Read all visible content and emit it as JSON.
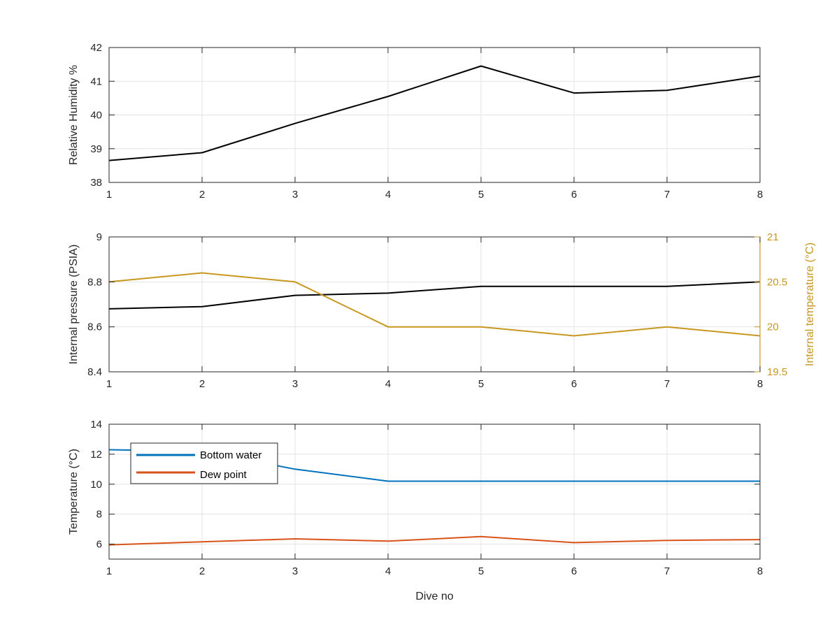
{
  "chart_data": [
    {
      "type": "line",
      "x": [
        1,
        2,
        3,
        4,
        5,
        6,
        7,
        8
      ],
      "xlim": [
        1,
        8
      ],
      "ylim": [
        38,
        42
      ],
      "xticks": [
        "1",
        "2",
        "3",
        "4",
        "5",
        "6",
        "7",
        "8"
      ],
      "yticks": [
        "38",
        "39",
        "40",
        "41",
        "42"
      ],
      "xlabel": "",
      "ylabel": "Relative Humidity %",
      "grid": true,
      "series": [
        {
          "values": [
            38.65,
            38.88,
            39.75,
            40.55,
            41.45,
            40.65,
            40.73,
            41.15
          ],
          "color": "#000000"
        }
      ]
    },
    {
      "type": "line",
      "x": [
        1,
        2,
        3,
        4,
        5,
        6,
        7,
        8
      ],
      "xlim": [
        1,
        8
      ],
      "ylim": [
        8.4,
        9
      ],
      "ylim_right": [
        19.5,
        21
      ],
      "xticks": [
        "1",
        "2",
        "3",
        "4",
        "5",
        "6",
        "7",
        "8"
      ],
      "yticks": [
        "8.4",
        "8.6",
        "8.8",
        "9"
      ],
      "yticks_right": [
        "19.5",
        "20",
        "20.5",
        "21"
      ],
      "xlabel": "",
      "ylabel": "Internal pressure (PSIA)",
      "ylabel_right": "Internal temperature (°C)",
      "grid": true,
      "series": [
        {
          "values": [
            8.68,
            8.69,
            8.74,
            8.75,
            8.78,
            8.78,
            8.78,
            8.8
          ],
          "color": "#000000",
          "axis": "left"
        },
        {
          "values": [
            20.5,
            20.6,
            20.5,
            20.0,
            20.0,
            19.9,
            20.0,
            19.9
          ],
          "color": "#C8971F",
          "axis": "right"
        }
      ]
    },
    {
      "type": "line",
      "x": [
        1,
        2,
        3,
        4,
        5,
        6,
        7,
        8
      ],
      "xlim": [
        1,
        8
      ],
      "ylim": [
        5,
        14
      ],
      "xticks": [
        "1",
        "2",
        "3",
        "4",
        "5",
        "6",
        "7",
        "8"
      ],
      "yticks": [
        "6",
        "8",
        "10",
        "12",
        "14"
      ],
      "xlabel": "Dive no",
      "ylabel": "Temperature (°C)",
      "grid": true,
      "legend": "top-left",
      "series": [
        {
          "name": "Bottom water",
          "values": [
            12.3,
            12.2,
            11.0,
            10.2,
            10.2,
            10.2,
            10.2,
            10.2
          ],
          "color": "#0072BD"
        },
        {
          "name": "Dew point",
          "values": [
            5.95,
            6.15,
            6.35,
            6.2,
            6.5,
            6.1,
            6.25,
            6.3
          ],
          "color": "#D95319"
        }
      ]
    }
  ]
}
